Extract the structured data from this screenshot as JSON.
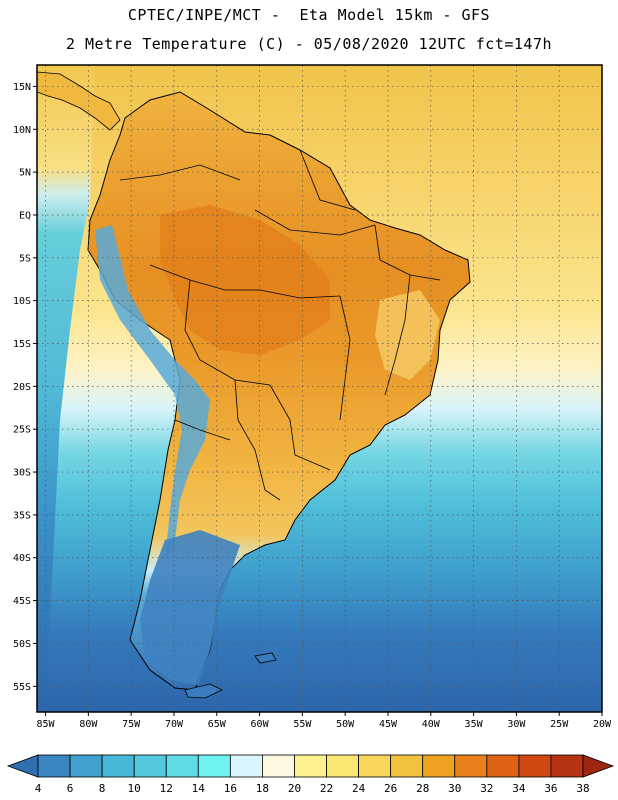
{
  "title_line1": "CPTEC/INPE/MCT -  Eta Model 15km - GFS",
  "title_line2": "2 Metre Temperature (C) - 05/08/2020 12UTC fct=147h",
  "lat_labels": [
    "15N",
    "10N",
    "5N",
    "EQ",
    "5S",
    "10S",
    "15S",
    "20S",
    "25S",
    "30S",
    "35S",
    "40S",
    "45S",
    "50S",
    "55S"
  ],
  "lat_values": [
    15,
    10,
    5,
    0,
    -5,
    -10,
    -15,
    -20,
    -25,
    -30,
    -35,
    -40,
    -45,
    -50,
    -55
  ],
  "lon_labels": [
    "85W",
    "80W",
    "75W",
    "70W",
    "65W",
    "60W",
    "55W",
    "50W",
    "45W",
    "40W",
    "35W",
    "30W",
    "25W",
    "20W"
  ],
  "lon_values": [
    -85,
    -80,
    -75,
    -70,
    -65,
    -60,
    -55,
    -50,
    -45,
    -40,
    -35,
    -30,
    -25,
    -20
  ],
  "map_extent": {
    "lon_min": -86,
    "lon_max": -20,
    "lat_min": -58,
    "lat_max": 17.5
  },
  "colorbar": {
    "labels": [
      "4",
      "6",
      "8",
      "10",
      "12",
      "14",
      "16",
      "18",
      "20",
      "22",
      "24",
      "26",
      "28",
      "30",
      "32",
      "34",
      "36",
      "38"
    ],
    "colors": [
      "#2f6fb0",
      "#3a86c2",
      "#41a1cf",
      "#48b8d8",
      "#55c9dc",
      "#60dce5",
      "#6ff2f0",
      "#d8f6fb",
      "#fff8e1",
      "#fdf191",
      "#fbe674",
      "#f8d558",
      "#f3c33f",
      "#eea222",
      "#e8811a",
      "#e06214",
      "#cf4711",
      "#b53310",
      "#9e2610"
    ]
  },
  "colors": {
    "ocean_deep": "#2f6fb0",
    "ocean_mid": "#3a86c2",
    "ocean_cool": "#48b8d8",
    "ocean_light": "#7fdde9",
    "ocean_pale": "#cfeff4",
    "tropic_sea": "#fbe08a",
    "tropic_sea_north": "#f3cc52",
    "land_hot": "#e59020",
    "land_warm": "#efaa35",
    "land_mild": "#f4c25a",
    "andes_cold": "#5aa6d6",
    "patagonia": "#3b7fbf",
    "border": "#000000"
  }
}
